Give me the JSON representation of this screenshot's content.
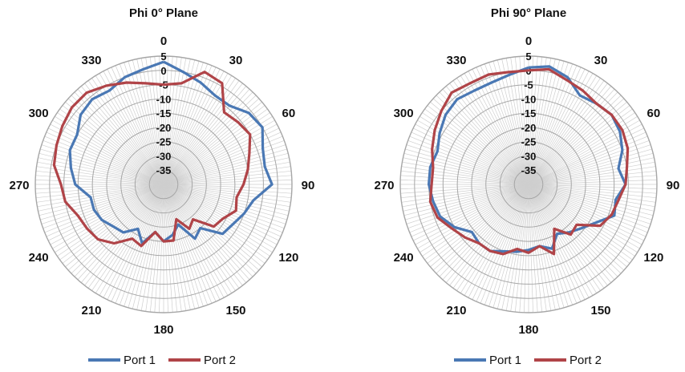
{
  "colors": {
    "port1": "#4a78b4",
    "port2": "#b04448",
    "grid": "#a6a6a6",
    "spoke": "#cfcfcf"
  },
  "chart_data": [
    {
      "type": "polar-line",
      "title": "Phi 0° Plane",
      "angle_labels": [
        "0",
        "30",
        "60",
        "90",
        "120",
        "150",
        "180",
        "210",
        "240",
        "270",
        "300",
        "330"
      ],
      "radial_ticks": [
        "5",
        "0",
        "-5",
        "-10",
        "-15",
        "-20",
        "-25",
        "-30",
        "-35"
      ],
      "rlim": [
        -40,
        5
      ],
      "angle_direction": "clockwise, 0 at top",
      "legend": "bottom",
      "theta": [
        0,
        10,
        20,
        30,
        40,
        50,
        60,
        70,
        80,
        90,
        100,
        110,
        120,
        130,
        140,
        150,
        160,
        170,
        180,
        190,
        200,
        210,
        220,
        230,
        240,
        250,
        260,
        270,
        280,
        290,
        300,
        310,
        320,
        330,
        340,
        350
      ],
      "series": [
        {
          "name": "Port 1",
          "values": [
            3,
            0,
            -2,
            -4,
            -4,
            -1,
            0,
            -3,
            -4,
            -2,
            -8,
            -10,
            -12,
            -13,
            -20,
            -18,
            -25,
            -22,
            -20,
            -23,
            -18,
            -22,
            -18,
            -17,
            -15,
            -14,
            -14,
            -9,
            -7,
            -5,
            -5,
            -2,
            -1,
            -2,
            0,
            1
          ]
        },
        {
          "name": "Port 2",
          "values": [
            -5,
            -4,
            2,
            1,
            -7,
            -6,
            -5,
            -8,
            -10,
            -12,
            -14,
            -13,
            -16,
            -17,
            -24,
            -22,
            -27,
            -20,
            -20,
            -23,
            -17,
            -18,
            -13,
            -10,
            -9,
            -8,
            -5,
            -4,
            -1,
            0,
            1,
            2,
            2,
            0,
            -2,
            -4
          ]
        }
      ]
    },
    {
      "type": "polar-line",
      "title": "Phi 90° Plane",
      "angle_labels": [
        "0",
        "30",
        "60",
        "90",
        "120",
        "150",
        "180",
        "210",
        "240",
        "270",
        "300",
        "330"
      ],
      "radial_ticks": [
        "5",
        "0",
        "-5",
        "-10",
        "-15",
        "-20",
        "-25",
        "-30",
        "-35"
      ],
      "rlim": [
        -40,
        5
      ],
      "angle_direction": "clockwise, 0 at top",
      "legend": "bottom",
      "theta": [
        0,
        10,
        20,
        30,
        40,
        50,
        60,
        70,
        80,
        90,
        100,
        110,
        120,
        130,
        140,
        150,
        160,
        170,
        180,
        190,
        200,
        210,
        220,
        230,
        240,
        250,
        260,
        270,
        280,
        290,
        300,
        310,
        320,
        330,
        340,
        350
      ],
      "series": [
        {
          "name": "Port 1",
          "values": [
            1,
            2,
            0,
            -4,
            -3,
            -2,
            -3,
            -5,
            -8,
            -6,
            -9,
            -8,
            -13,
            -16,
            -18,
            -20,
            -16,
            -18,
            -17,
            -16,
            -15,
            -13,
            -13,
            -14,
            -10,
            -7,
            -6,
            -5,
            -5,
            -6,
            -4,
            -2,
            -1,
            -2,
            -2,
            -1
          ]
        },
        {
          "name": "Port 2",
          "values": [
            0,
            1,
            -1,
            -2,
            -3,
            -2,
            -2,
            -3,
            -5,
            -6,
            -8,
            -9,
            -11,
            -18,
            -17,
            -22,
            -14,
            -18,
            -16,
            -17,
            -14,
            -13,
            -13,
            -11,
            -9,
            -6,
            -5,
            -6,
            -6,
            -4,
            -2,
            0,
            2,
            1,
            1,
            0
          ]
        }
      ]
    }
  ]
}
